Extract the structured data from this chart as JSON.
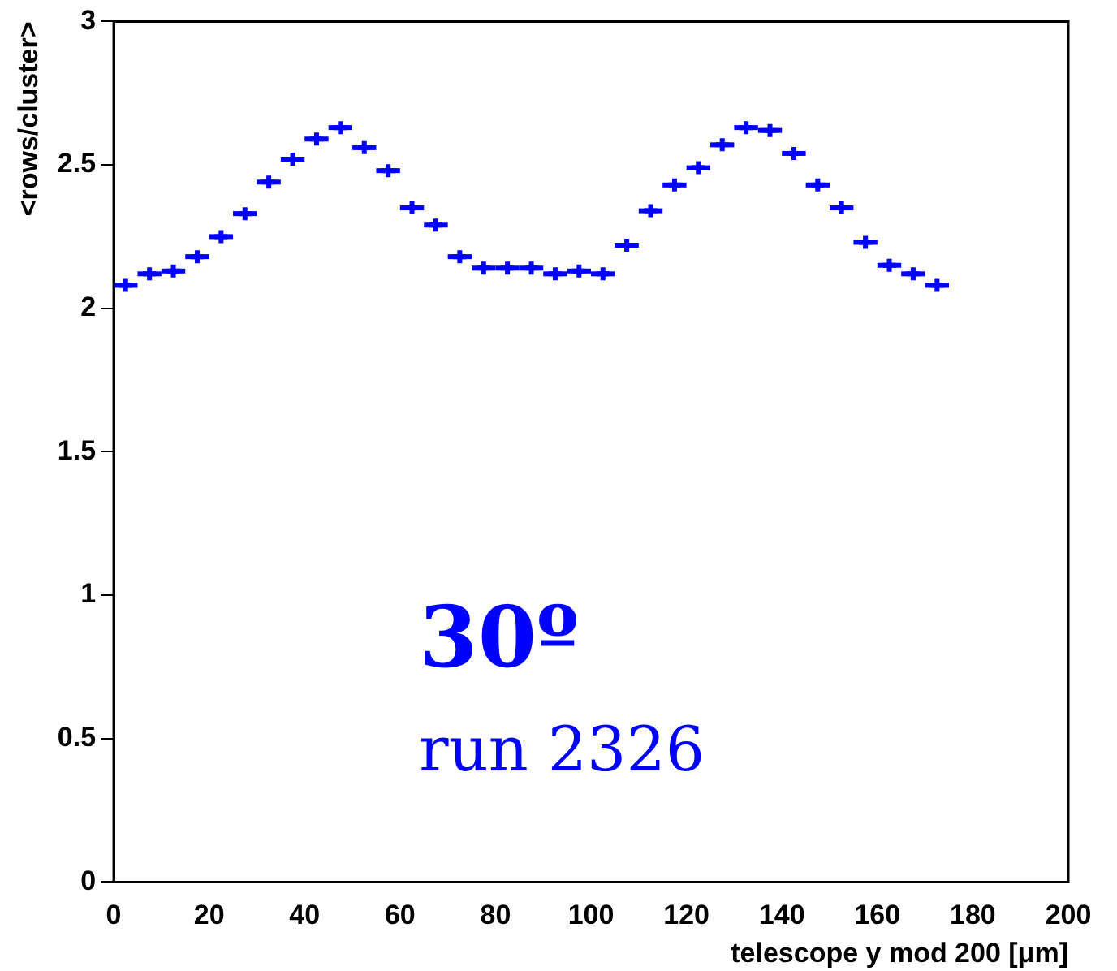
{
  "chart_data": {
    "type": "scatter",
    "xlabel": "telescope y mod 200 [μm]",
    "ylabel": "<rows/cluster>",
    "annotations": [
      "30º",
      "run 2326"
    ],
    "series": [
      {
        "color": "#0000ff",
        "x": [
          2.5,
          7.5,
          12.5,
          17.5,
          22.5,
          27.5,
          32.5,
          37.5,
          42.5,
          47.5,
          52.5,
          57.5,
          62.5,
          67.5,
          72.5,
          77.5,
          82.5,
          87.5,
          92.5,
          97.5,
          102.5,
          107.5,
          112.5,
          117.5,
          122.5,
          127.5,
          132.5,
          137.5,
          142.5,
          147.5,
          152.5,
          157.5,
          162.5,
          167.5,
          172.5
        ],
        "values": [
          2.08,
          2.12,
          2.13,
          2.18,
          2.25,
          2.33,
          2.44,
          2.52,
          2.59,
          2.63,
          2.56,
          2.48,
          2.35,
          2.29,
          2.18,
          2.14,
          2.14,
          2.14,
          2.12,
          2.13,
          2.12,
          2.22,
          2.34,
          2.43,
          2.49,
          2.57,
          2.63,
          2.62,
          2.54,
          2.43,
          2.35,
          2.23,
          2.15,
          2.12,
          2.08
        ],
        "xerrors": [
          2.5,
          2.5,
          2.5,
          2.5,
          2.5,
          2.5,
          2.5,
          2.5,
          2.5,
          2.5,
          2.5,
          2.5,
          2.5,
          2.5,
          2.5,
          2.5,
          2.5,
          2.5,
          2.5,
          2.5,
          2.5,
          2.5,
          2.5,
          2.5,
          2.5,
          2.5,
          2.5,
          2.5,
          2.5,
          2.5,
          2.5,
          2.5,
          2.5,
          2.5,
          2.5
        ]
      }
    ],
    "marker": "cross",
    "xlim": [
      0,
      200
    ],
    "xticks": [
      0,
      20,
      40,
      60,
      80,
      100,
      120,
      140,
      160,
      180,
      200
    ],
    "ylim": [
      0,
      3
    ],
    "yticks": [
      0,
      0.5,
      1,
      1.5,
      2,
      2.5,
      3
    ],
    "grid": false,
    "legend": false
  }
}
